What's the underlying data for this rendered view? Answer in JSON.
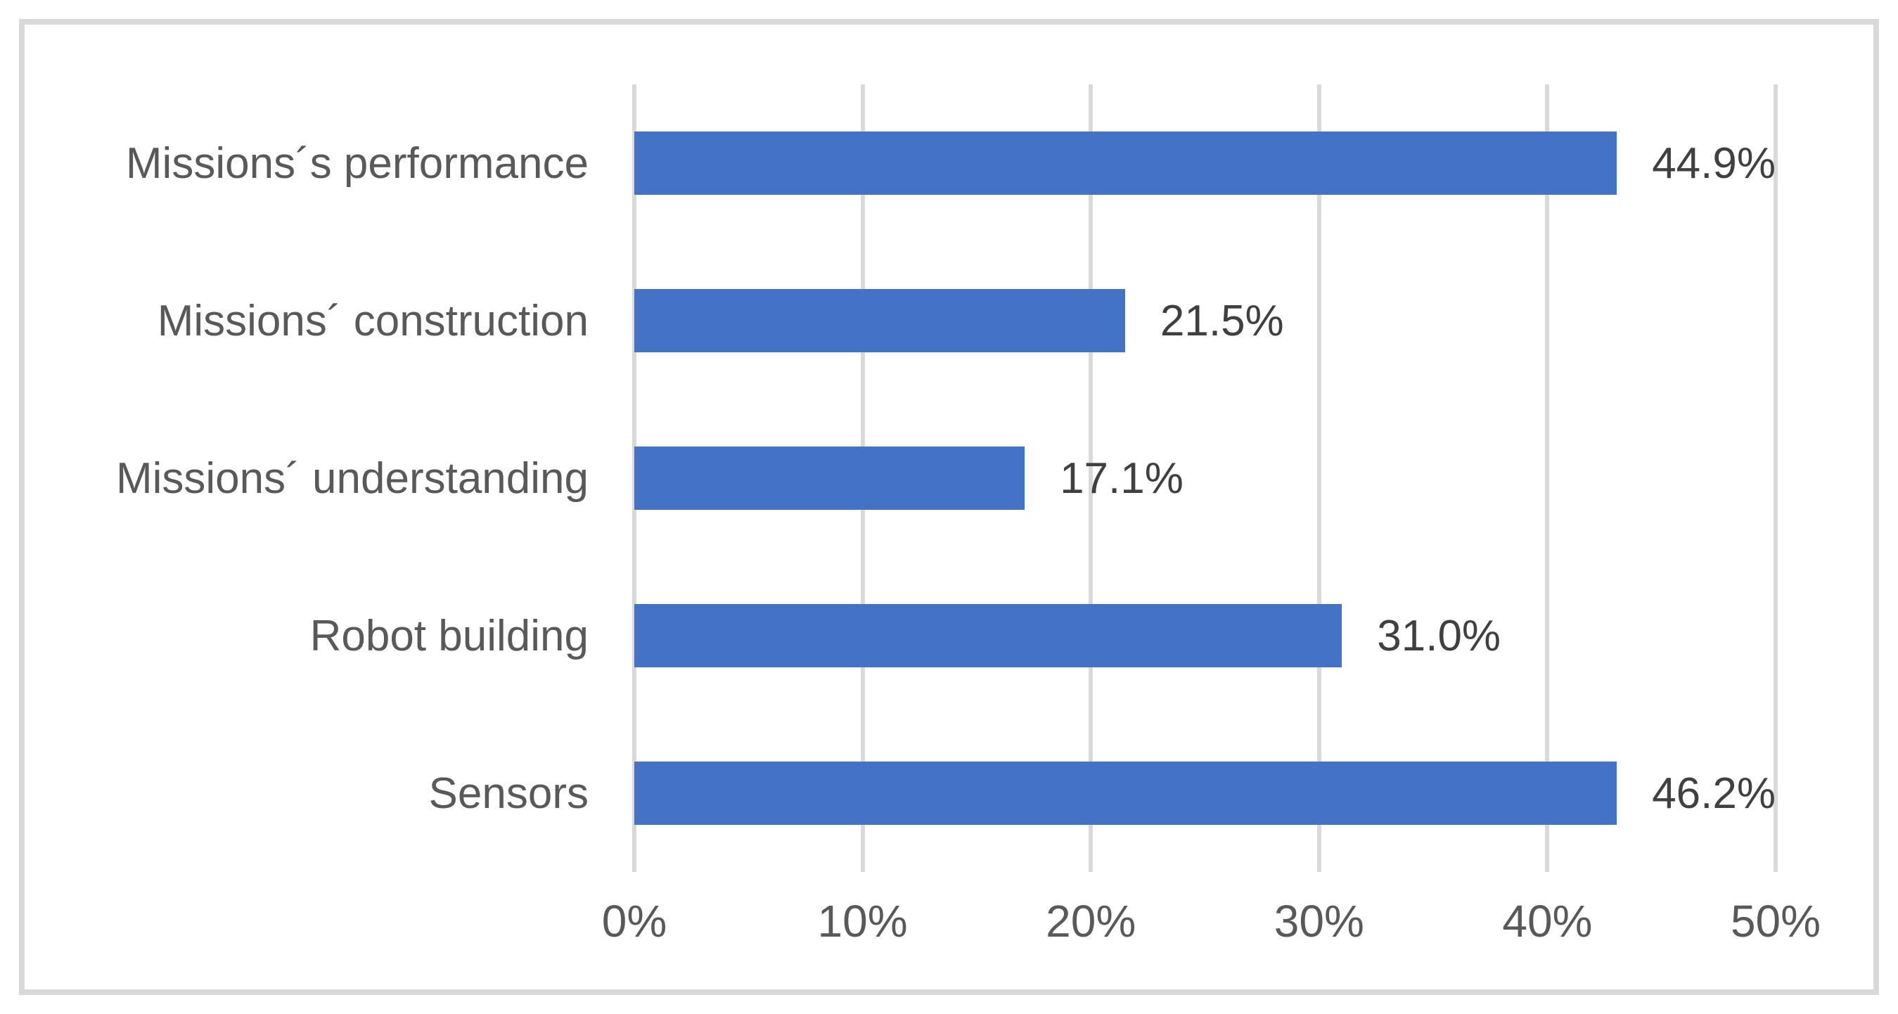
{
  "chart_data": {
    "type": "bar",
    "orientation": "horizontal",
    "title": "",
    "xlabel": "",
    "ylabel": "",
    "categories": [
      "Missions´s performance",
      "Missions´ construction",
      "Missions´ understanding",
      "Robot building",
      "Sensors"
    ],
    "values": [
      44.9,
      21.5,
      17.1,
      31.0,
      46.2
    ],
    "value_labels": [
      "44.9%",
      "21.5%",
      "17.1%",
      "31.0%",
      "46.2%"
    ],
    "x_ticks": [
      "0%",
      "10%",
      "20%",
      "30%",
      "40%",
      "50%"
    ],
    "x_tick_values": [
      0,
      10,
      20,
      30,
      40,
      50
    ],
    "xlim": [
      0,
      50
    ],
    "grid": "vertical-gridlines-on",
    "legend": "none",
    "colors": {
      "bar": "#4472C4",
      "gridline": "#D9D9D9",
      "category_label_text": "#595959",
      "value_label_text": "#404040",
      "tick_label_text": "#595959",
      "frame_border": "#D9D9D9",
      "background": "#FFFFFF"
    }
  }
}
